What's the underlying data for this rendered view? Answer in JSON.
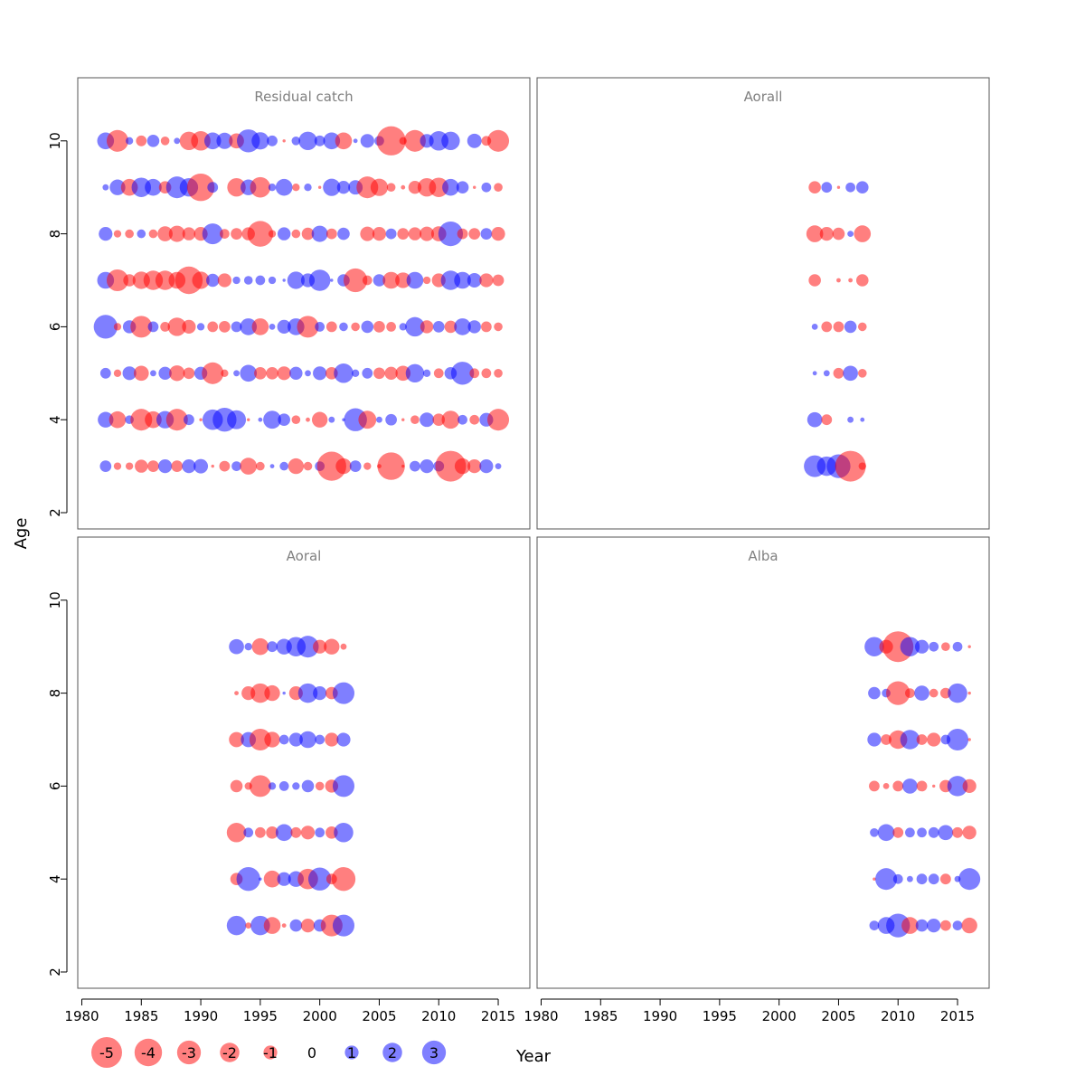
{
  "chart_data": {
    "type": "scatter",
    "subtype": "bubble residual plot",
    "xlabel": "Year",
    "ylabel": "Age",
    "x_ticks": [
      "1980",
      "1985",
      "1990",
      "1995",
      "2000",
      "2005",
      "2010",
      "2015"
    ],
    "y_ticks": [
      "2",
      "4",
      "6",
      "8",
      "10"
    ],
    "xlim": [
      1980,
      2018
    ],
    "ylim": [
      2,
      11
    ],
    "ages": [
      3,
      4,
      5,
      6,
      7,
      8,
      9,
      10
    ],
    "colors": {
      "positive": "#0000ff",
      "negative": "#ff0000",
      "alpha": 0.5
    },
    "legend": {
      "position": "bottom-left",
      "values": [
        -5,
        -4,
        -3,
        -2,
        -1,
        0,
        1,
        2,
        3
      ],
      "labels": [
        "-5",
        "-4",
        "-3",
        "-2",
        "-1",
        "0",
        "1",
        "2",
        "3"
      ]
    },
    "panels": [
      {
        "title": "Residual catch",
        "years": [
          1982,
          1983,
          1984,
          1985,
          1986,
          1987,
          1988,
          1989,
          1990,
          1991,
          1992,
          1993,
          1994,
          1995,
          1996,
          1997,
          1998,
          1999,
          2000,
          2001,
          2002,
          2003,
          2004,
          2005,
          2006,
          2007,
          2008,
          2009,
          2010,
          2011,
          2012,
          2013,
          2014,
          2015
        ],
        "residuals": {
          "10": [
            1.5,
            -2.5,
            0.3,
            -0.6,
            0.8,
            -0.4,
            0.2,
            -1.8,
            -2.0,
            1.5,
            1.4,
            -1.2,
            2.8,
            1.6,
            0.6,
            -0.05,
            0.4,
            1.8,
            0.6,
            1.5,
            -1.5,
            0.1,
            1.0,
            0.5,
            -4.5,
            -0.3,
            -2.5,
            1.0,
            2.0,
            1.8,
            0.0,
            1.1,
            -0.5,
            -2.5
          ],
          "9": [
            0.2,
            1.3,
            -1.5,
            2.0,
            1.5,
            -0.8,
            2.5,
            1.8,
            -4.0,
            0.6,
            0.0,
            -1.8,
            1.3,
            -2.2,
            0.3,
            1.5,
            -0.3,
            0.3,
            -0.05,
            1.6,
            0.9,
            1.1,
            -2.5,
            -1.6,
            -0.4,
            -0.1,
            -0.9,
            -1.8,
            -2.0,
            1.5,
            0.8,
            -0.05,
            0.5,
            -0.4
          ],
          "8": [
            1.0,
            -0.3,
            -0.4,
            0.4,
            -0.4,
            -1.2,
            -1.4,
            -0.9,
            -1.0,
            2.3,
            -0.5,
            -0.7,
            -0.9,
            -3.5,
            -0.3,
            0.9,
            -0.4,
            -0.8,
            1.4,
            -0.6,
            0.8,
            0.0,
            -1.1,
            -1.0,
            0.6,
            -0.7,
            -0.9,
            -1.1,
            -1.2,
            3.2,
            -0.6,
            -0.7,
            0.7,
            -1.0
          ],
          "7": [
            1.5,
            -2.5,
            -0.8,
            -1.6,
            -2.0,
            -2.0,
            -1.5,
            -4.0,
            -1.6,
            0.9,
            -1.0,
            0.3,
            0.4,
            0.5,
            0.3,
            0.05,
            1.6,
            1.0,
            2.4,
            0.05,
            0.8,
            -3.0,
            -0.5,
            0.8,
            -1.5,
            -1.3,
            1.5,
            -0.3,
            -1.0,
            2.0,
            1.5,
            1.1,
            -1.0,
            -0.7
          ],
          "6": [
            3.0,
            -0.3,
            0.9,
            -2.5,
            0.6,
            -0.5,
            -1.8,
            -1.0,
            0.3,
            -0.6,
            -0.7,
            0.6,
            1.5,
            -1.5,
            0.2,
            1.0,
            1.5,
            -2.5,
            0.5,
            -0.6,
            0.4,
            -0.4,
            0.8,
            -0.7,
            -0.5,
            0.3,
            2.0,
            -0.9,
            0.7,
            -0.8,
            1.5,
            0.9,
            -0.6,
            -0.4
          ],
          "5": [
            0.6,
            -0.3,
            1.0,
            -1.2,
            0.2,
            0.9,
            -1.3,
            -0.7,
            0.9,
            -2.5,
            -0.3,
            0.2,
            1.5,
            -0.8,
            -0.8,
            -1.0,
            0.9,
            0.2,
            1.0,
            -0.8,
            2.0,
            0.3,
            0.6,
            -0.7,
            -0.9,
            -1.2,
            1.8,
            0.3,
            -0.5,
            0.8,
            2.8,
            -0.5,
            -0.5,
            -0.4
          ],
          "4": [
            1.3,
            -1.5,
            0.4,
            -2.5,
            -1.5,
            1.6,
            -2.5,
            0.6,
            -0.05,
            2.2,
            3.0,
            1.9,
            -0.05,
            0.1,
            1.7,
            0.8,
            -0.4,
            -0.1,
            -1.3,
            0.2,
            0.05,
            2.8,
            -1.7,
            0.2,
            0.7,
            -0.05,
            -0.4,
            1.1,
            -0.8,
            -1.7,
            0.5,
            -0.5,
            1.0,
            -2.5
          ],
          "3": [
            0.7,
            -0.3,
            -0.3,
            -0.9,
            -0.7,
            1.0,
            -0.7,
            1.0,
            1.1,
            -0.05,
            -0.6,
            0.5,
            -1.5,
            -0.4,
            0.1,
            0.4,
            -1.3,
            -0.4,
            0.5,
            -4.5,
            -1.3,
            0.7,
            -0.3,
            -0.1,
            -4.0,
            -0.05,
            0.6,
            1.0,
            0.6,
            -5.0,
            -1.3,
            -1.0,
            1.0,
            0.2
          ]
        }
      },
      {
        "title": "Aorall",
        "years": [
          2003,
          2004,
          2005,
          2006,
          2007
        ],
        "residuals": {
          "9": [
            -0.8,
            0.6,
            -0.05,
            0.5,
            0.8
          ],
          "8": [
            -1.5,
            -1.0,
            -0.8,
            0.2,
            -1.5
          ],
          "7": [
            -0.8,
            0.0,
            -0.1,
            -0.1,
            -0.8
          ],
          "6": [
            0.2,
            -0.6,
            -0.6,
            0.8,
            -0.4
          ],
          "5": [
            0.1,
            0.2,
            -0.6,
            1.2,
            -0.4
          ],
          "4": [
            1.2,
            -0.6,
            0.0,
            0.2,
            0.1
          ],
          "3": [
            2.5,
            2.0,
            3.0,
            -5.0,
            -0.3
          ]
        }
      },
      {
        "title": "Aoral",
        "years": [
          1993,
          1994,
          1995,
          1996,
          1997,
          1998,
          1999,
          2000,
          2001,
          2002
        ],
        "residuals": {
          "9": [
            1.2,
            0.3,
            -1.5,
            0.6,
            1.3,
            2.0,
            2.5,
            -1.0,
            -1.3,
            -0.2
          ],
          "8": [
            -0.1,
            -1.0,
            -2.0,
            -1.3,
            0.05,
            -1.0,
            2.0,
            1.0,
            -0.8,
            2.5
          ],
          "7": [
            -1.2,
            1.2,
            -2.5,
            -1.3,
            0.5,
            1.0,
            1.5,
            0.5,
            -1.0,
            1.0
          ],
          "6": [
            -0.8,
            -0.3,
            -2.5,
            0.3,
            0.5,
            0.3,
            0.8,
            -0.4,
            -0.9,
            2.5
          ],
          "5": [
            -2.0,
            0.5,
            -0.6,
            -0.8,
            1.5,
            -0.6,
            -1.0,
            0.5,
            -0.8,
            2.0
          ],
          "4": [
            -0.8,
            3.0,
            0.05,
            -1.5,
            1.0,
            1.3,
            -2.2,
            2.8,
            -0.6,
            -3.0
          ],
          "3": [
            2.0,
            -0.2,
            2.0,
            -1.5,
            -0.1,
            0.8,
            -1.0,
            0.8,
            -2.5,
            2.5
          ]
        }
      },
      {
        "title": "Alba",
        "years": [
          2008,
          2009,
          2010,
          2011,
          2012,
          2013,
          2014,
          2015,
          2016
        ],
        "residuals": {
          "9": [
            2.0,
            -1.0,
            -5.0,
            2.0,
            1.0,
            0.5,
            -0.4,
            0.5,
            -0.05
          ],
          "8": [
            0.8,
            0.4,
            -3.0,
            -0.5,
            1.2,
            -0.4,
            -0.6,
            2.0,
            -0.05
          ],
          "7": [
            1.0,
            -0.6,
            -1.8,
            2.0,
            -0.6,
            -1.0,
            0.5,
            2.5,
            -0.05
          ],
          "6": [
            -0.6,
            -0.2,
            -0.6,
            1.2,
            -0.6,
            -0.05,
            -0.8,
            2.2,
            -1.0
          ],
          "5": [
            0.4,
            1.5,
            -0.6,
            0.5,
            0.5,
            0.6,
            1.2,
            -0.6,
            -1.0
          ],
          "4": [
            -0.05,
            2.5,
            0.5,
            0.2,
            0.6,
            0.6,
            -0.6,
            0.2,
            2.5
          ],
          "3": [
            0.5,
            1.5,
            3.0,
            -1.5,
            0.8,
            1.0,
            -0.6,
            0.5,
            -1.3
          ]
        }
      }
    ]
  }
}
